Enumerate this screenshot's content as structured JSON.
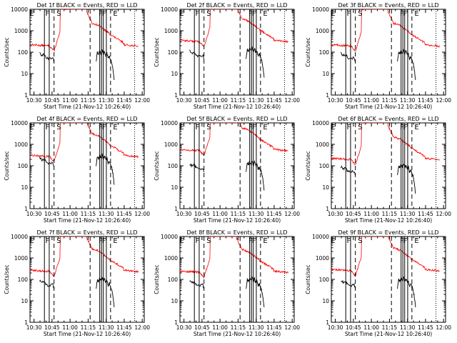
{
  "common": {
    "ylabel": "Counts/sec",
    "xlabel": "Start Time (21-Nov-12 10:26:40)",
    "x_ticks": [
      "10:30",
      "10:45",
      "11:00",
      "11:15",
      "11:30",
      "11:45",
      "12:00"
    ],
    "y_ticks": [
      "1",
      "10",
      "100",
      "1000",
      "10000"
    ],
    "ylim": [
      1,
      10000
    ],
    "x_range_min": [
      0,
      95
    ],
    "y_scale": "log",
    "colors": {
      "events": "#000000",
      "lld": "#ff0000"
    },
    "markers": {
      "E1": 1.5,
      "F": 14.5,
      "S": 24,
      "E2": 71,
      "dashed": [
        20,
        50,
        67
      ],
      "solid_pairs": [
        [
          12,
          16
        ],
        [
          58,
          59.5
        ],
        [
          61,
          63.5
        ]
      ],
      "dotted": [
        87
      ]
    }
  },
  "chart_data": [
    {
      "type": "line",
      "title": "Det  1f BLACK = Events, RED = LLD",
      "marker_labels": [
        "E",
        "F",
        "S",
        "F",
        "F",
        "E"
      ],
      "lld_scale": 1.0,
      "ev_scale": 1.0
    },
    {
      "type": "line",
      "title": "Det  2f BLACK = Events, RED = LLD",
      "marker_labels": [
        "E",
        "F",
        "S",
        "F",
        "F",
        "E"
      ],
      "lld_scale": 1.6,
      "ev_scale": 1.3
    },
    {
      "type": "line",
      "title": "Det  3f BLACK = Events, RED = LLD",
      "marker_labels": [
        "E",
        "F",
        "S",
        "F",
        "F",
        "E"
      ],
      "lld_scale": 1.0,
      "ev_scale": 1.0
    },
    {
      "type": "line",
      "title": "Det  4f BLACK = Events, RED = LLD",
      "marker_labels": [
        "E",
        "F",
        "S",
        "F",
        "F",
        "E"
      ],
      "lld_scale": 1.4,
      "ev_scale": 2.6
    },
    {
      "type": "line",
      "title": "Det  5f BLACK = Events, RED = LLD",
      "marker_labels": [
        "E",
        "F",
        "S",
        "F",
        "F",
        "E"
      ],
      "lld_scale": 2.6,
      "ev_scale": 1.4
    },
    {
      "type": "line",
      "title": "Det  6f BLACK = Events, RED = LLD",
      "marker_labels": [
        "E",
        "F",
        "S",
        "F",
        "F",
        "E"
      ],
      "lld_scale": 1.0,
      "ev_scale": 1.0
    },
    {
      "type": "line",
      "title": "Det  7f BLACK = Events, RED = LLD",
      "marker_labels": [
        "E",
        "F",
        "S",
        "F",
        "F",
        "E"
      ],
      "lld_scale": 1.2,
      "ev_scale": 1.0
    },
    {
      "type": "line",
      "title": "Det  8f BLACK = Events, RED = LLD",
      "marker_labels": [
        "E",
        "F",
        "S",
        "F",
        "F",
        "E"
      ],
      "lld_scale": 1.1,
      "ev_scale": 1.0
    },
    {
      "type": "line",
      "title": "Det  9f BLACK = Events, RED = LLD",
      "marker_labels": [
        "E",
        "F",
        "S",
        "F",
        "F",
        "E"
      ],
      "lld_scale": 1.3,
      "ev_scale": 1.0
    }
  ]
}
